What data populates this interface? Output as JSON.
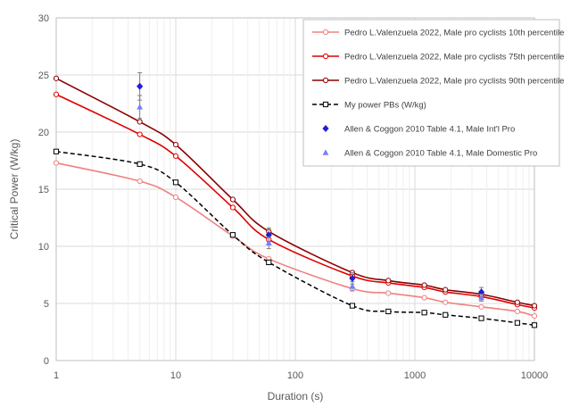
{
  "chart_data": {
    "type": "line",
    "title": "",
    "xlabel": "Duration (s)",
    "ylabel": "Critical Power (W/kg)",
    "xscale": "log",
    "xlim": [
      1,
      10000
    ],
    "ylim": [
      0,
      30
    ],
    "x_ticks": [
      1,
      10,
      100,
      1000,
      10000
    ],
    "x_tick_labels": [
      "1",
      "10",
      "100",
      "1000",
      "10000"
    ],
    "y_ticks": [
      0,
      5,
      10,
      15,
      20,
      25,
      30
    ],
    "y_tick_labels": [
      "0",
      "5",
      "10",
      "15",
      "20",
      "25",
      "30"
    ],
    "grid": true,
    "legend_position": "top-right",
    "series": [
      {
        "name": "Pedro L.Valenzuela 2022, Male pro cyclists 10th percentile",
        "color": "#f08080",
        "style": "solid",
        "marker": "circle-open",
        "x": [
          1,
          5,
          10,
          30,
          60,
          300,
          600,
          1200,
          1800,
          3600,
          7200,
          10000
        ],
        "y": [
          17.3,
          15.7,
          14.3,
          10.9,
          8.9,
          6.3,
          5.9,
          5.5,
          5.1,
          4.7,
          4.3,
          3.9
        ]
      },
      {
        "name": "Pedro L.Valenzuela 2022, Male pro cyclists 75th percentile",
        "color": "#e00000",
        "style": "solid",
        "marker": "circle-open",
        "x": [
          1,
          5,
          10,
          30,
          60,
          300,
          600,
          1200,
          1800,
          3600,
          7200,
          10000
        ],
        "y": [
          23.3,
          19.8,
          17.9,
          13.4,
          10.6,
          7.4,
          6.8,
          6.4,
          6.0,
          5.6,
          4.9,
          4.6
        ]
      },
      {
        "name": "Pedro L.Valenzuela 2022, Male pro cyclists 90th percentile",
        "color": "#8b0000",
        "style": "solid",
        "marker": "circle-open",
        "x": [
          1,
          5,
          10,
          30,
          60,
          300,
          600,
          1200,
          1800,
          3600,
          7200,
          10000
        ],
        "y": [
          24.7,
          20.9,
          18.9,
          14.1,
          11.3,
          7.7,
          7.0,
          6.6,
          6.2,
          5.8,
          5.1,
          4.8
        ]
      },
      {
        "name": "My power PBs (W/kg)",
        "color": "#000000",
        "style": "dashed",
        "marker": "square-open",
        "x": [
          1,
          5,
          10,
          30,
          60,
          300,
          600,
          1200,
          1800,
          3600,
          7200,
          10000
        ],
        "y": [
          18.3,
          17.2,
          15.6,
          11.0,
          8.6,
          4.8,
          4.3,
          4.2,
          4.0,
          3.7,
          3.3,
          3.1
        ]
      },
      {
        "name": "Allen & Coggon 2010 Table 4.1, Male Int'l Pro",
        "color": "#1f1fd6",
        "style": "none",
        "marker": "diamond",
        "x": [
          5,
          60,
          300,
          3600
        ],
        "y": [
          24.0,
          11.0,
          7.2,
          6.0
        ],
        "error": [
          1.2,
          0.6,
          0.5,
          0.4
        ]
      },
      {
        "name": "Allen & Coggon 2010 Table 4.1, Male Domestic Pro",
        "color": "#7b7bff",
        "style": "none",
        "marker": "triangle",
        "x": [
          5,
          60,
          300,
          3600
        ],
        "y": [
          22.2,
          10.3,
          6.5,
          5.5
        ],
        "error": [
          1.0,
          0.5,
          0.4,
          0.3
        ]
      }
    ]
  }
}
